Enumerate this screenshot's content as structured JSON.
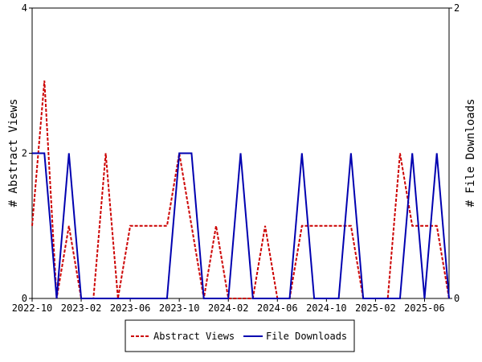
{
  "chart_data": {
    "type": "line",
    "categories": [
      "2022-10",
      null,
      null,
      null,
      "2023-02",
      null,
      null,
      null,
      "2023-06",
      null,
      null,
      null,
      "2023-10",
      null,
      null,
      null,
      "2024-02",
      null,
      null,
      null,
      "2024-06",
      null,
      null,
      null,
      "2024-10",
      null,
      null,
      null,
      "2025-02",
      null,
      null,
      null,
      "2025-06",
      null,
      null
    ],
    "ylabel": "# Abstract Views",
    "y2label": "# File Downloads",
    "ylim": [
      0,
      4
    ],
    "yticks": [
      0,
      2,
      4
    ],
    "y2lim": [
      0,
      2
    ],
    "y2ticks": [
      0,
      2
    ],
    "legend": "bottom",
    "series": [
      {
        "name": "Abstract Views",
        "color": "#cc0000",
        "dash": true,
        "values": [
          1,
          3,
          0,
          1,
          0,
          0,
          2,
          0,
          1,
          1,
          1,
          1,
          2,
          1,
          0,
          1,
          0,
          0,
          0,
          1,
          0,
          0,
          1,
          1,
          1,
          1,
          1,
          0,
          0,
          0,
          2,
          1,
          1,
          1,
          0
        ]
      },
      {
        "name": "File Downloads",
        "color": "#0000b0",
        "axis": "y2",
        "values": [
          1,
          1,
          0,
          1,
          0,
          0,
          0,
          0,
          0,
          0,
          0,
          0,
          1,
          1,
          0,
          0,
          0,
          1,
          0,
          0,
          0,
          0,
          1,
          0,
          0,
          0,
          1,
          0,
          0,
          0,
          0,
          1,
          0,
          1,
          0
        ]
      }
    ]
  }
}
